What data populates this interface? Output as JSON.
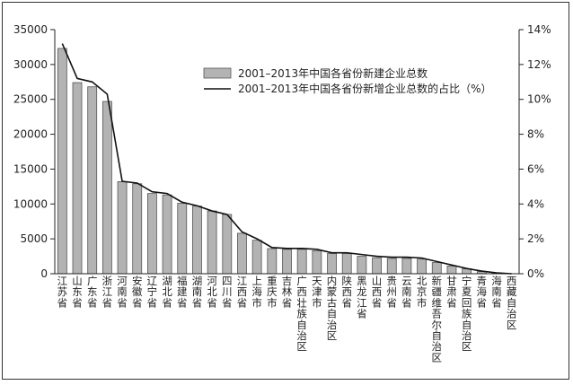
{
  "chart_data": {
    "type": "bar",
    "categories": [
      "江苏省",
      "山东省",
      "广东省",
      "浙江省",
      "河南省",
      "安徽省",
      "辽宁省",
      "湖北省",
      "福建省",
      "湖南省",
      "河北省",
      "四川省",
      "江西省",
      "上海市",
      "重庆市",
      "吉林省",
      "广西壮族自治区",
      "天津市",
      "内蒙古自治区",
      "陕西省",
      "黑龙江省",
      "山西省",
      "贵州省",
      "云南省",
      "北京市",
      "新疆维吾尔自治区",
      "甘肃省",
      "宁夏回族自治区",
      "青海省",
      "海南省",
      "西藏自治区"
    ],
    "series": [
      {
        "name": "2001–2013年中国各省份新建企业总数",
        "type": "bar",
        "axis": "left",
        "values": [
          32300,
          27400,
          26800,
          24700,
          13200,
          12900,
          11500,
          11300,
          10100,
          9700,
          9000,
          8500,
          5800,
          4800,
          3600,
          3500,
          3500,
          3300,
          2900,
          2900,
          2500,
          2300,
          2200,
          2200,
          2100,
          1600,
          1100,
          700,
          300,
          100,
          10
        ]
      },
      {
        "name": "2001–2013年中国各省份新增企业总数的占比（%）",
        "type": "line",
        "axis": "right",
        "values": [
          13.2,
          11.2,
          11.0,
          10.3,
          5.3,
          5.2,
          4.7,
          4.6,
          4.1,
          3.9,
          3.6,
          3.4,
          2.4,
          2.0,
          1.5,
          1.45,
          1.45,
          1.4,
          1.2,
          1.2,
          1.1,
          1.0,
          0.95,
          0.95,
          0.9,
          0.7,
          0.5,
          0.3,
          0.15,
          0.05,
          0.0
        ]
      }
    ],
    "y_left": {
      "ylim": [
        0,
        35000
      ],
      "ticks": [
        "0",
        "5000",
        "10000",
        "15000",
        "20000",
        "25000",
        "30000",
        "35000"
      ]
    },
    "y_right": {
      "ylim": [
        0,
        14
      ],
      "ticks": [
        "0%",
        "2%",
        "4%",
        "6%",
        "8%",
        "10%",
        "12%",
        "14%"
      ]
    },
    "legend_position": "top-center",
    "grid": false,
    "colors": {
      "bar_fill": "#b3b3b3",
      "bar_stroke": "#555555",
      "line": "#111111"
    }
  }
}
